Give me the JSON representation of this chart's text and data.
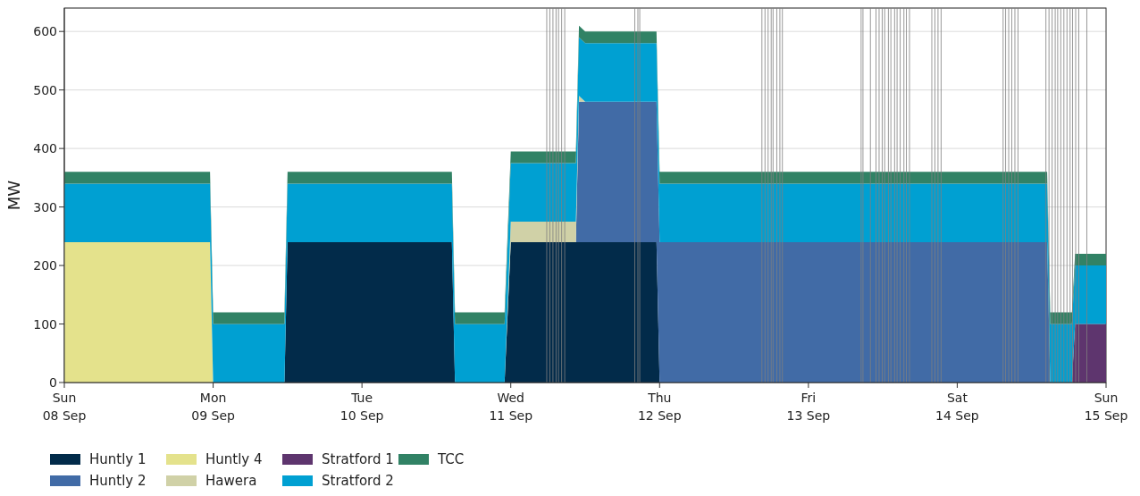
{
  "chart_data": {
    "type": "area",
    "stacked": true,
    "ylabel": "MW",
    "grid": "y",
    "legend": "bottom left",
    "x": [
      "--09-08T00:00",
      "--09-08T23:30",
      "--09-09T00:00",
      "--09-09T11:30",
      "--09-09T12:00",
      "--09-10T14:30",
      "--09-10T15:00",
      "--09-10T23:00",
      "--09-11T00:00",
      "--09-11T10:30",
      "--09-11T11:00",
      "--09-11T12:00",
      "--09-11T23:30",
      "--09-12T00:00",
      "--09-14T14:30",
      "--09-14T15:00",
      "--09-14T18:30",
      "--09-14T19:00",
      "--09-15T00:00"
    ],
    "xlim": [
      "--09-08",
      "--09-15"
    ],
    "xticks": [
      {
        "value": "--09-08",
        "label": "Sun\n08 Sep"
      },
      {
        "value": "--09-09",
        "label": "Mon\n09 Sep"
      },
      {
        "value": "--09-10",
        "label": "Tue\n10 Sep"
      },
      {
        "value": "--09-11",
        "label": "Wed\n11 Sep"
      },
      {
        "value": "--09-12",
        "label": "Thu\n12 Sep"
      },
      {
        "value": "--09-13",
        "label": "Fri\n13 Sep"
      },
      {
        "value": "--09-14",
        "label": "Sat\n14 Sep"
      },
      {
        "value": "--09-15",
        "label": "Sun\n15 Sep"
      }
    ],
    "ylim": [
      0,
      640
    ],
    "yticks": [
      0,
      100,
      200,
      300,
      400,
      500,
      600
    ],
    "series": [
      {
        "name": "Huntly 1",
        "color": "#022b4a",
        "values": [
          null,
          null,
          null,
          0,
          240,
          240,
          0,
          0,
          240,
          240,
          240,
          240,
          240,
          0,
          null,
          null,
          null,
          null,
          null
        ]
      },
      {
        "name": "Huntly 2",
        "color": "#416ba6",
        "values": [
          null,
          null,
          null,
          null,
          null,
          null,
          null,
          null,
          null,
          0,
          240,
          240,
          240,
          240,
          240,
          0,
          null,
          null,
          null
        ]
      },
      {
        "name": "Huntly 4",
        "color": "#e4e28c",
        "values": [
          240,
          240,
          0,
          null,
          null,
          null,
          null,
          null,
          null,
          null,
          null,
          null,
          null,
          null,
          null,
          null,
          null,
          null,
          null
        ]
      },
      {
        "name": "Hawera",
        "color": "#d0d1a7",
        "values": [
          null,
          null,
          null,
          null,
          null,
          null,
          null,
          0,
          35,
          35,
          10,
          0,
          null,
          null,
          null,
          null,
          null,
          null,
          null
        ]
      },
      {
        "name": "Stratford 1",
        "color": "#5e356e",
        "values": [
          null,
          null,
          null,
          null,
          null,
          null,
          null,
          null,
          null,
          null,
          null,
          null,
          null,
          null,
          null,
          null,
          0,
          100,
          100
        ]
      },
      {
        "name": "Stratford 2",
        "color": "#00a0d2",
        "values": [
          100,
          100,
          100,
          100,
          100,
          100,
          100,
          100,
          100,
          100,
          100,
          100,
          100,
          100,
          100,
          100,
          100,
          100,
          100
        ]
      },
      {
        "name": "TCC",
        "color": "#318265",
        "values": [
          20,
          20,
          20,
          20,
          20,
          20,
          20,
          20,
          20,
          20,
          20,
          20,
          20,
          20,
          20,
          20,
          20,
          20,
          20
        ]
      }
    ],
    "ref_lines": [
      {
        "axis": "x",
        "value": "--09-11T05:48",
        "color": "#808080"
      },
      {
        "axis": "x",
        "value": "--09-11T06:18",
        "color": "#808080"
      },
      {
        "axis": "x",
        "value": "--09-11T06:48",
        "color": "#808080"
      },
      {
        "axis": "x",
        "value": "--09-11T07:18",
        "color": "#808080"
      },
      {
        "axis": "x",
        "value": "--09-11T07:42",
        "color": "#808080"
      },
      {
        "axis": "x",
        "value": "--09-11T08:12",
        "color": "#808080"
      },
      {
        "axis": "x",
        "value": "--09-11T08:42",
        "color": "#808080"
      },
      {
        "axis": "x",
        "value": "--09-11T20:00",
        "color": "#808080"
      },
      {
        "axis": "x",
        "value": "--09-11T20:30",
        "color": "#808080"
      },
      {
        "axis": "x",
        "value": "--09-11T20:48",
        "color": "#808080"
      },
      {
        "axis": "x",
        "value": "--09-12T16:30",
        "color": "#808080"
      },
      {
        "axis": "x",
        "value": "--09-12T17:00",
        "color": "#808080"
      },
      {
        "axis": "x",
        "value": "--09-12T17:30",
        "color": "#808080"
      },
      {
        "axis": "x",
        "value": "--09-12T18:00",
        "color": "#808080"
      },
      {
        "axis": "x",
        "value": "--09-12T18:18",
        "color": "#808080"
      },
      {
        "axis": "x",
        "value": "--09-12T18:54",
        "color": "#808080"
      },
      {
        "axis": "x",
        "value": "--09-12T19:24",
        "color": "#808080"
      },
      {
        "axis": "x",
        "value": "--09-12T19:48",
        "color": "#808080"
      },
      {
        "axis": "x",
        "value": "--09-13T08:30",
        "color": "#808080"
      },
      {
        "axis": "x",
        "value": "--09-13T08:48",
        "color": "#808080"
      },
      {
        "axis": "x",
        "value": "--09-13T10:00",
        "color": "#808080"
      },
      {
        "axis": "x",
        "value": "--09-13T10:54",
        "color": "#808080"
      },
      {
        "axis": "x",
        "value": "--09-13T11:24",
        "color": "#808080"
      },
      {
        "axis": "x",
        "value": "--09-13T11:54",
        "color": "#808080"
      },
      {
        "axis": "x",
        "value": "--09-13T12:18",
        "color": "#808080"
      },
      {
        "axis": "x",
        "value": "--09-13T12:54",
        "color": "#808080"
      },
      {
        "axis": "x",
        "value": "--09-13T13:18",
        "color": "#808080"
      },
      {
        "axis": "x",
        "value": "--09-13T13:54",
        "color": "#808080"
      },
      {
        "axis": "x",
        "value": "--09-13T14:18",
        "color": "#808080"
      },
      {
        "axis": "x",
        "value": "--09-13T14:48",
        "color": "#808080"
      },
      {
        "axis": "x",
        "value": "--09-13T15:24",
        "color": "#808080"
      },
      {
        "axis": "x",
        "value": "--09-13T15:48",
        "color": "#808080"
      },
      {
        "axis": "x",
        "value": "--09-13T16:18",
        "color": "#808080"
      },
      {
        "axis": "x",
        "value": "--09-13T19:54",
        "color": "#808080"
      },
      {
        "axis": "x",
        "value": "--09-13T20:24",
        "color": "#808080"
      },
      {
        "axis": "x",
        "value": "--09-13T20:54",
        "color": "#808080"
      },
      {
        "axis": "x",
        "value": "--09-13T21:24",
        "color": "#808080"
      },
      {
        "axis": "x",
        "value": "--09-14T07:24",
        "color": "#808080"
      },
      {
        "axis": "x",
        "value": "--09-14T07:48",
        "color": "#808080"
      },
      {
        "axis": "x",
        "value": "--09-14T08:18",
        "color": "#808080"
      },
      {
        "axis": "x",
        "value": "--09-14T08:48",
        "color": "#808080"
      },
      {
        "axis": "x",
        "value": "--09-14T09:18",
        "color": "#808080"
      },
      {
        "axis": "x",
        "value": "--09-14T09:48",
        "color": "#808080"
      },
      {
        "axis": "x",
        "value": "--09-14T14:18",
        "color": "#808080"
      },
      {
        "axis": "x",
        "value": "--09-14T14:48",
        "color": "#808080"
      },
      {
        "axis": "x",
        "value": "--09-14T15:18",
        "color": "#808080"
      },
      {
        "axis": "x",
        "value": "--09-14T15:48",
        "color": "#808080"
      },
      {
        "axis": "x",
        "value": "--09-14T16:12",
        "color": "#808080"
      },
      {
        "axis": "x",
        "value": "--09-14T16:42",
        "color": "#808080"
      },
      {
        "axis": "x",
        "value": "--09-14T17:12",
        "color": "#808080"
      },
      {
        "axis": "x",
        "value": "--09-14T17:42",
        "color": "#808080"
      },
      {
        "axis": "x",
        "value": "--09-14T18:12",
        "color": "#808080"
      },
      {
        "axis": "x",
        "value": "--09-14T18:36",
        "color": "#808080"
      },
      {
        "axis": "x",
        "value": "--09-14T19:06",
        "color": "#808080"
      },
      {
        "axis": "x",
        "value": "--09-14T19:36",
        "color": "#808080"
      },
      {
        "axis": "x",
        "value": "--09-14T20:54",
        "color": "#808080"
      }
    ]
  }
}
